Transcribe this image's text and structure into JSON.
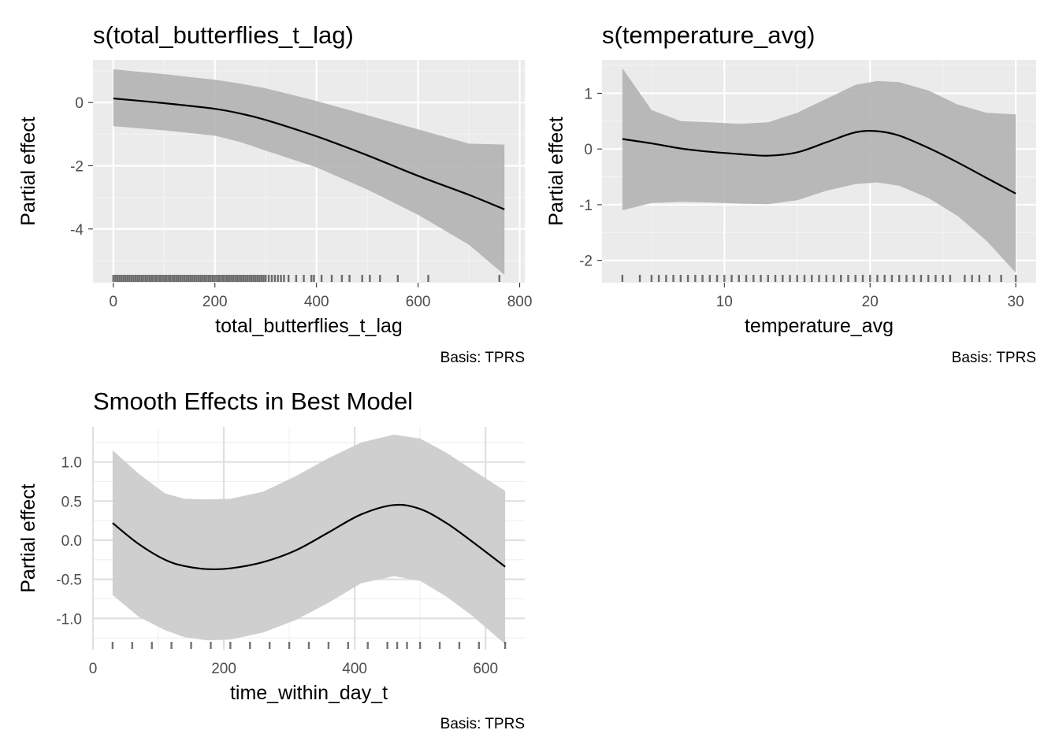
{
  "caption": "Basis: TPRS",
  "colors": {
    "panel_bg": "#ebebeb",
    "band": "#b3b3b3",
    "band_light": "#cccccc",
    "line": "#000000",
    "grid": "#ffffff",
    "light_grid": "#e0e0e0"
  },
  "chart_data": [
    {
      "type": "line",
      "title": "s(total_butterflies_t_lag)",
      "xlabel": "total_butterflies_t_lag",
      "ylabel": "Partial effect",
      "caption": "Basis: TPRS",
      "theme": "grey",
      "xlim": [
        -40,
        810
      ],
      "ylim": [
        -5.7,
        1.35
      ],
      "xticks": [
        0,
        200,
        400,
        600,
        800
      ],
      "xtick_labels": [
        "0",
        "200",
        "400",
        "600",
        "800"
      ],
      "yticks": [
        0,
        -2,
        -4
      ],
      "ytick_labels": [
        "0",
        "-2",
        "-4"
      ],
      "x": [
        0,
        100,
        200,
        250,
        300,
        400,
        500,
        600,
        700,
        770
      ],
      "series": [
        {
          "values": [
            0.13,
            -0.02,
            -0.2,
            -0.35,
            -0.55,
            -1.07,
            -1.67,
            -2.32,
            -2.92,
            -3.38
          ]
        }
      ],
      "band_upper": [
        1.05,
        0.9,
        0.72,
        0.6,
        0.45,
        0.05,
        -0.4,
        -0.85,
        -1.3,
        -1.33
      ],
      "band_lower": [
        -0.75,
        -0.88,
        -1.05,
        -1.25,
        -1.52,
        -2.05,
        -2.75,
        -3.55,
        -4.5,
        -5.45
      ],
      "rug": [
        0,
        4,
        8,
        12,
        16,
        20,
        24,
        28,
        32,
        36,
        40,
        44,
        48,
        52,
        56,
        60,
        64,
        68,
        72,
        76,
        80,
        84,
        88,
        92,
        96,
        100,
        104,
        108,
        112,
        116,
        120,
        124,
        128,
        132,
        136,
        140,
        144,
        148,
        152,
        156,
        160,
        164,
        168,
        172,
        176,
        180,
        184,
        188,
        192,
        196,
        200,
        204,
        208,
        212,
        216,
        220,
        224,
        228,
        232,
        236,
        240,
        244,
        248,
        252,
        256,
        260,
        264,
        268,
        272,
        276,
        280,
        284,
        288,
        292,
        296,
        300,
        306,
        312,
        318,
        324,
        330,
        336,
        345,
        360,
        375,
        390,
        395,
        410,
        430,
        450,
        465,
        490,
        505,
        525,
        560,
        620,
        760
      ]
    },
    {
      "type": "line",
      "title": "s(temperature_avg)",
      "xlabel": "temperature_avg",
      "ylabel": "Partial effect",
      "caption": "Basis: TPRS",
      "theme": "grey",
      "xlim": [
        1.6,
        31.4
      ],
      "ylim": [
        -2.4,
        1.6
      ],
      "xticks": [
        10,
        20,
        30
      ],
      "xtick_labels": [
        "10",
        "20",
        "30"
      ],
      "yticks": [
        1,
        0,
        -1,
        -2
      ],
      "ytick_labels": [
        "1",
        "0",
        "-1",
        "-2"
      ],
      "x": [
        3,
        5,
        7,
        9,
        11,
        13,
        15,
        17,
        19,
        20.5,
        22,
        24,
        26,
        28,
        30
      ],
      "series": [
        {
          "values": [
            0.18,
            0.1,
            0.01,
            -0.05,
            -0.09,
            -0.12,
            -0.06,
            0.12,
            0.3,
            0.32,
            0.24,
            0.02,
            -0.24,
            -0.52,
            -0.8
          ]
        }
      ],
      "band_upper": [
        1.45,
        0.7,
        0.5,
        0.48,
        0.45,
        0.48,
        0.65,
        0.9,
        1.15,
        1.22,
        1.2,
        1.05,
        0.8,
        0.65,
        0.62
      ],
      "band_lower": [
        -1.1,
        -0.97,
        -0.95,
        -0.96,
        -0.98,
        -0.99,
        -0.92,
        -0.75,
        -0.63,
        -0.6,
        -0.66,
        -0.88,
        -1.2,
        -1.65,
        -2.22
      ],
      "rug": [
        3,
        4.2,
        5,
        5.5,
        6,
        6.5,
        7,
        7.5,
        8,
        8.5,
        9,
        9.5,
        10,
        10.5,
        11,
        11.5,
        12,
        12.5,
        13,
        13.5,
        14,
        14.5,
        15,
        15.5,
        16,
        16.5,
        17,
        17.5,
        18,
        18.5,
        19,
        19.5,
        20,
        20.5,
        21,
        21.5,
        22,
        22.5,
        23,
        23.5,
        24,
        24.5,
        25,
        25.5,
        26.5,
        27,
        27.5,
        28.2,
        29,
        30
      ]
    },
    {
      "type": "line",
      "title": "Smooth Effects in Best Model",
      "xlabel": "time_within_day_t",
      "ylabel": "Partial effect",
      "caption": "Basis: TPRS",
      "theme": "minimal",
      "xlim": [
        0,
        660
      ],
      "ylim": [
        -1.4,
        1.45
      ],
      "xticks": [
        0,
        200,
        400,
        600
      ],
      "xtick_labels": [
        "0",
        "200",
        "400",
        "600"
      ],
      "yticks": [
        1.0,
        0.5,
        0.0,
        -0.5,
        -1.0
      ],
      "ytick_labels": [
        "1.0",
        "0.5",
        "0.0",
        "-0.5",
        "-1.0"
      ],
      "x": [
        30,
        70,
        110,
        140,
        175,
        210,
        260,
        310,
        360,
        410,
        460,
        500,
        540,
        580,
        630
      ],
      "series": [
        {
          "values": [
            0.22,
            -0.05,
            -0.25,
            -0.33,
            -0.37,
            -0.36,
            -0.28,
            -0.13,
            0.1,
            0.33,
            0.45,
            0.4,
            0.22,
            -0.02,
            -0.34
          ]
        }
      ],
      "band_upper": [
        1.15,
        0.85,
        0.6,
        0.53,
        0.52,
        0.53,
        0.62,
        0.82,
        1.05,
        1.25,
        1.35,
        1.3,
        1.12,
        0.9,
        0.63
      ],
      "band_lower": [
        -0.7,
        -0.98,
        -1.15,
        -1.24,
        -1.28,
        -1.27,
        -1.18,
        -1.02,
        -0.8,
        -0.55,
        -0.46,
        -0.52,
        -0.72,
        -0.97,
        -1.33
      ],
      "rug": [
        30,
        60,
        90,
        120,
        150,
        180,
        210,
        240,
        270,
        300,
        330,
        360,
        390,
        420,
        450,
        465,
        480,
        500,
        530,
        560,
        590,
        630
      ]
    }
  ]
}
